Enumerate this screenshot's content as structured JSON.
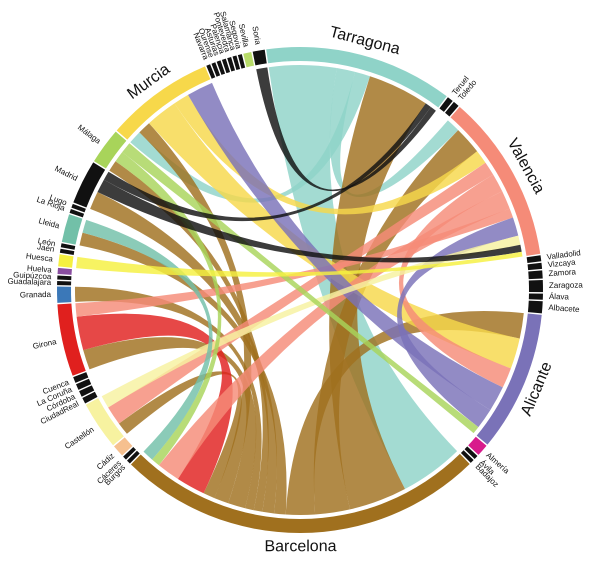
{
  "chart_data": {
    "type": "chord",
    "nodes": [
      {
        "name": "Tarragona",
        "color": "#8fd3c8",
        "value": 47
      },
      {
        "name": "Teruel",
        "color": "#111111",
        "value": 1.5
      },
      {
        "name": "Toledo",
        "color": "#111111",
        "value": 1.5
      },
      {
        "name": "Valencia",
        "color": "#f58b78",
        "value": 42
      },
      {
        "name": "Valladolid",
        "color": "#111111",
        "value": 1.5
      },
      {
        "name": "Vizcaya",
        "color": "#111111",
        "value": 1.5
      },
      {
        "name": "Zamora",
        "color": "#111111",
        "value": 2
      },
      {
        "name": "Zaragoza",
        "color": "#111111",
        "value": 3
      },
      {
        "name": "Álava",
        "color": "#111111",
        "value": 1.5
      },
      {
        "name": "Albacete",
        "color": "#111111",
        "value": 3
      },
      {
        "name": "Alicante",
        "color": "#7a72b8",
        "value": 35
      },
      {
        "name": "Almería",
        "color": "#d81b8c",
        "value": 3
      },
      {
        "name": "Ávila",
        "color": "#111111",
        "value": 1
      },
      {
        "name": "Badajoz",
        "color": "#111111",
        "value": 1
      },
      {
        "name": "Barcelona",
        "color": "#a0701e",
        "value": 92
      },
      {
        "name": "Burgos",
        "color": "#111111",
        "value": 1
      },
      {
        "name": "Cáceres",
        "color": "#111111",
        "value": 1
      },
      {
        "name": "Cádiz",
        "color": "#f6c08f",
        "value": 3
      },
      {
        "name": "Castellón",
        "color": "#f7f2a0",
        "value": 12
      },
      {
        "name": "CiudadReal",
        "color": "#111111",
        "value": 1.5
      },
      {
        "name": "Córdoba",
        "color": "#111111",
        "value": 1.5
      },
      {
        "name": "La Coruña",
        "color": "#111111",
        "value": 1.5
      },
      {
        "name": "Cuenca",
        "color": "#111111",
        "value": 1.5
      },
      {
        "name": "Girona",
        "color": "#e0201e",
        "value": 18
      },
      {
        "name": "Granada",
        "color": "#3b78b8",
        "value": 4
      },
      {
        "name": "Guadalajara",
        "color": "#111111",
        "value": 1
      },
      {
        "name": "Guipúzcoa",
        "color": "#111111",
        "value": 1
      },
      {
        "name": "Huelva",
        "color": "#8a4ea0",
        "value": 1.5
      },
      {
        "name": "Huesca",
        "color": "#f5f040",
        "value": 3
      },
      {
        "name": "Jaén",
        "color": "#111111",
        "value": 1
      },
      {
        "name": "León",
        "color": "#111111",
        "value": 1
      },
      {
        "name": "Lleida",
        "color": "#72c0a8",
        "value": 7
      },
      {
        "name": "La Rioja",
        "color": "#111111",
        "value": 1
      },
      {
        "name": "Lugo",
        "color": "#111111",
        "value": 1
      },
      {
        "name": "Madrid",
        "color": "#111111",
        "value": 11
      },
      {
        "name": "Málaga",
        "color": "#a8d45a",
        "value": 9
      },
      {
        "name": "Murcia",
        "color": "#f7d84a",
        "value": 27
      },
      {
        "name": "Navarra",
        "color": "#111111",
        "value": 1
      },
      {
        "name": "Ourense",
        "color": "#111111",
        "value": 1
      },
      {
        "name": "Asturias",
        "color": "#111111",
        "value": 1
      },
      {
        "name": "Palencia",
        "color": "#111111",
        "value": 1
      },
      {
        "name": "Pontevedra",
        "color": "#111111",
        "value": 1
      },
      {
        "name": "Salamanca",
        "color": "#111111",
        "value": 1
      },
      {
        "name": "Segovia",
        "color": "#111111",
        "value": 1
      },
      {
        "name": "Sevilla",
        "color": "#b8dc6a",
        "value": 2
      },
      {
        "name": "Soria",
        "color": "#111111",
        "value": 3
      }
    ],
    "flows": [
      {
        "source": "Tarragona",
        "target": "Barcelona",
        "value": 22
      },
      {
        "source": "Tarragona",
        "target": "Valencia",
        "value": 6
      },
      {
        "source": "Tarragona",
        "target": "Murcia",
        "value": 5
      },
      {
        "source": "Barcelona",
        "target": "Tarragona",
        "value": 20
      },
      {
        "source": "Barcelona",
        "target": "Valencia",
        "value": 12
      },
      {
        "source": "Barcelona",
        "target": "Alicante",
        "value": 10
      },
      {
        "source": "Barcelona",
        "target": "Lleida",
        "value": 4
      },
      {
        "source": "Barcelona",
        "target": "Madrid",
        "value": 4
      },
      {
        "source": "Barcelona",
        "target": "Málaga",
        "value": 3
      },
      {
        "source": "Barcelona",
        "target": "Granada",
        "value": 3
      },
      {
        "source": "Barcelona",
        "target": "Girona",
        "value": 6
      },
      {
        "source": "Barcelona",
        "target": "Murcia",
        "value": 5
      },
      {
        "source": "Barcelona",
        "target": "Castellón",
        "value": 4
      },
      {
        "source": "Girona",
        "target": "Barcelona",
        "value": 10
      },
      {
        "source": "Murcia",
        "target": "Alicante",
        "value": 12
      },
      {
        "source": "Murcia",
        "target": "Valencia",
        "value": 6
      },
      {
        "source": "Valencia",
        "target": "Castellón",
        "value": 6
      },
      {
        "source": "Valencia",
        "target": "Alicante",
        "value": 8
      },
      {
        "source": "Valencia",
        "target": "Barcelona",
        "value": 8
      },
      {
        "source": "Valencia",
        "target": "Girona",
        "value": 4
      },
      {
        "source": "Alicante",
        "target": "Murcia",
        "value": 10
      },
      {
        "source": "Alicante",
        "target": "Valencia",
        "value": 8
      },
      {
        "source": "Castellón",
        "target": "Valencia",
        "value": 4
      },
      {
        "source": "Málaga",
        "target": "Barcelona",
        "value": 3
      },
      {
        "source": "Málaga",
        "target": "Alicante",
        "value": 3
      },
      {
        "source": "Lleida",
        "target": "Barcelona",
        "value": 4
      },
      {
        "source": "Madrid",
        "target": "Valencia",
        "value": 3
      },
      {
        "source": "Madrid",
        "target": "Tarragona",
        "value": 2
      },
      {
        "source": "Huesca",
        "target": "Valencia",
        "value": 2
      },
      {
        "source": "Soria",
        "target": "Tarragona",
        "value": 2
      }
    ]
  }
}
